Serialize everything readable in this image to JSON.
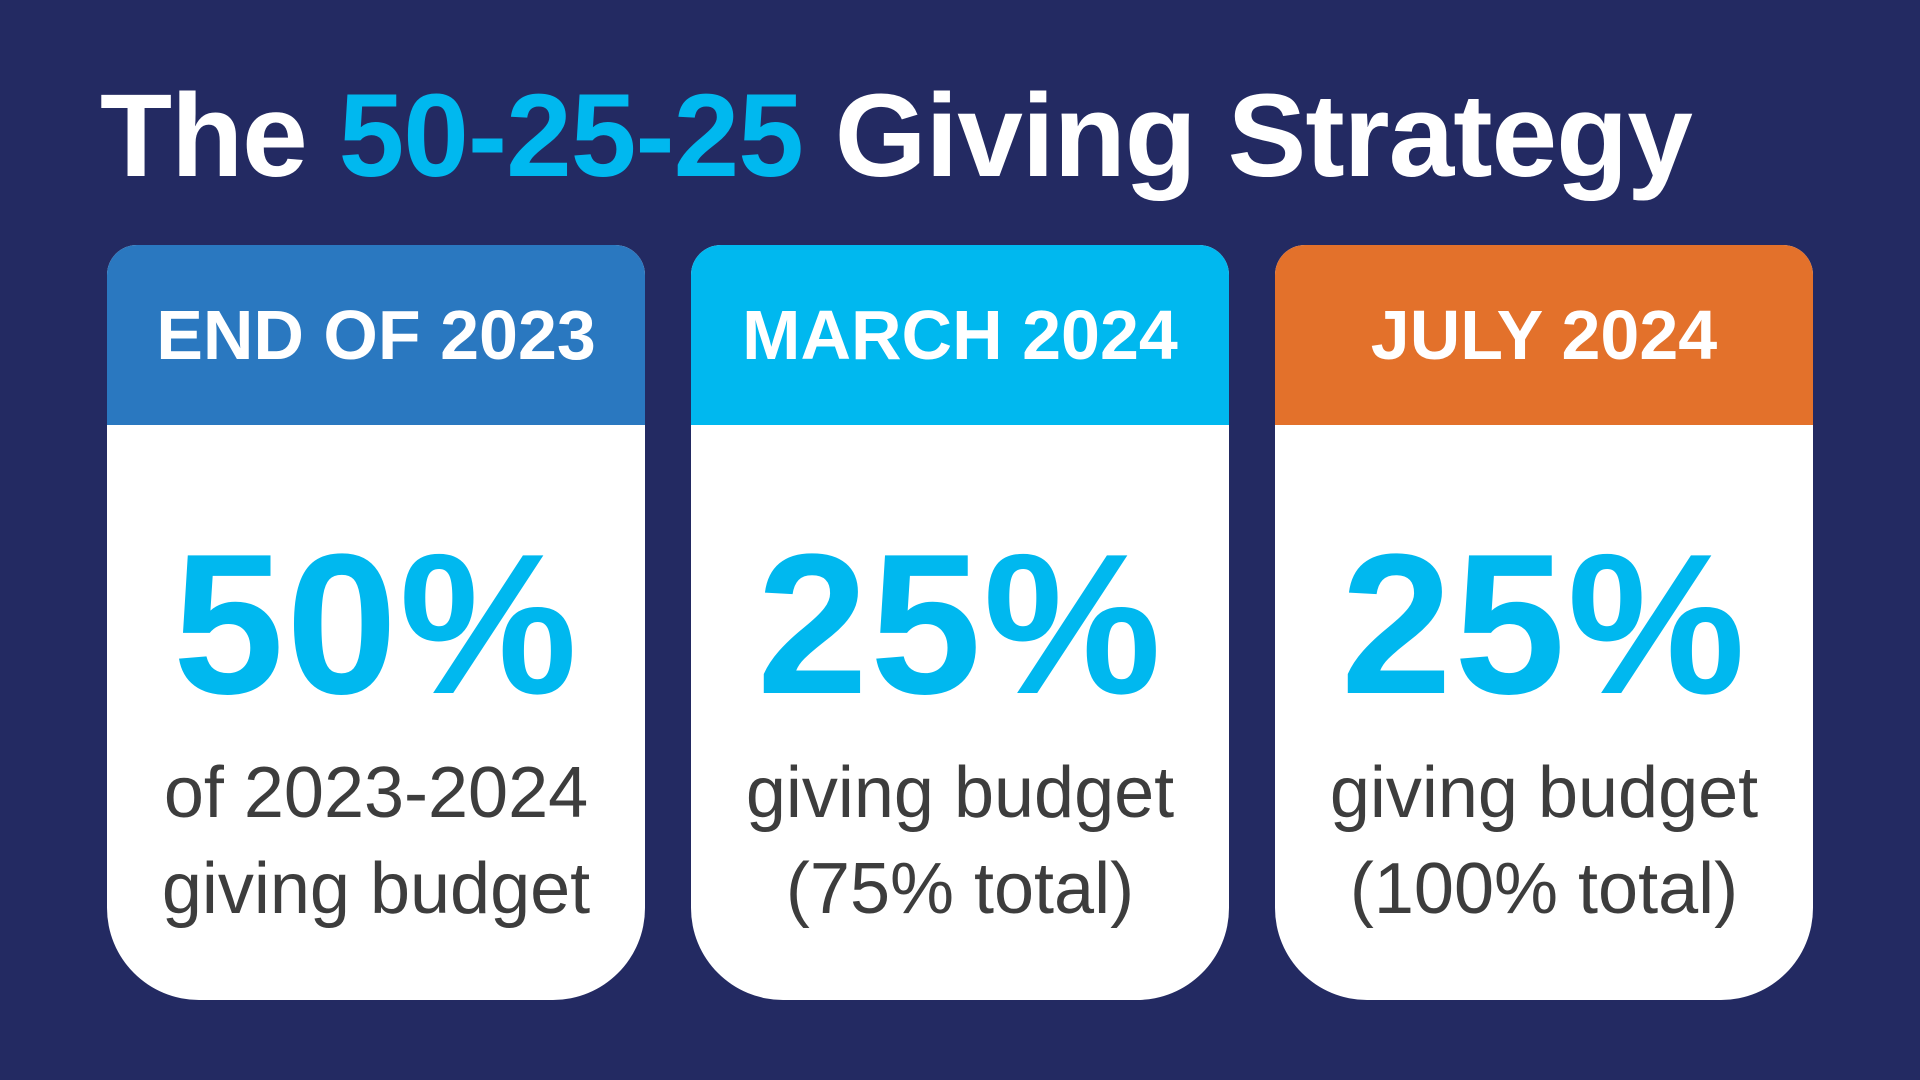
{
  "title": {
    "prefix": "The ",
    "highlight": "50-25-25",
    "suffix": " Giving Strategy"
  },
  "colors": {
    "background": "#232a62",
    "accent": "#00b8ef",
    "header_1": "#2a78c0",
    "header_2": "#00b8ef",
    "header_3": "#e3712b",
    "body_text": "#3d3d3d"
  },
  "cards": [
    {
      "header": "END OF 2023",
      "percent": "50%",
      "line1": "of 2023-2024",
      "line2": "giving budget"
    },
    {
      "header": "MARCH 2024",
      "percent": "25%",
      "line1": "giving budget",
      "line2": "(75% total)"
    },
    {
      "header": "JULY 2024",
      "percent": "25%",
      "line1": "giving budget",
      "line2": "(100% total)"
    }
  ]
}
